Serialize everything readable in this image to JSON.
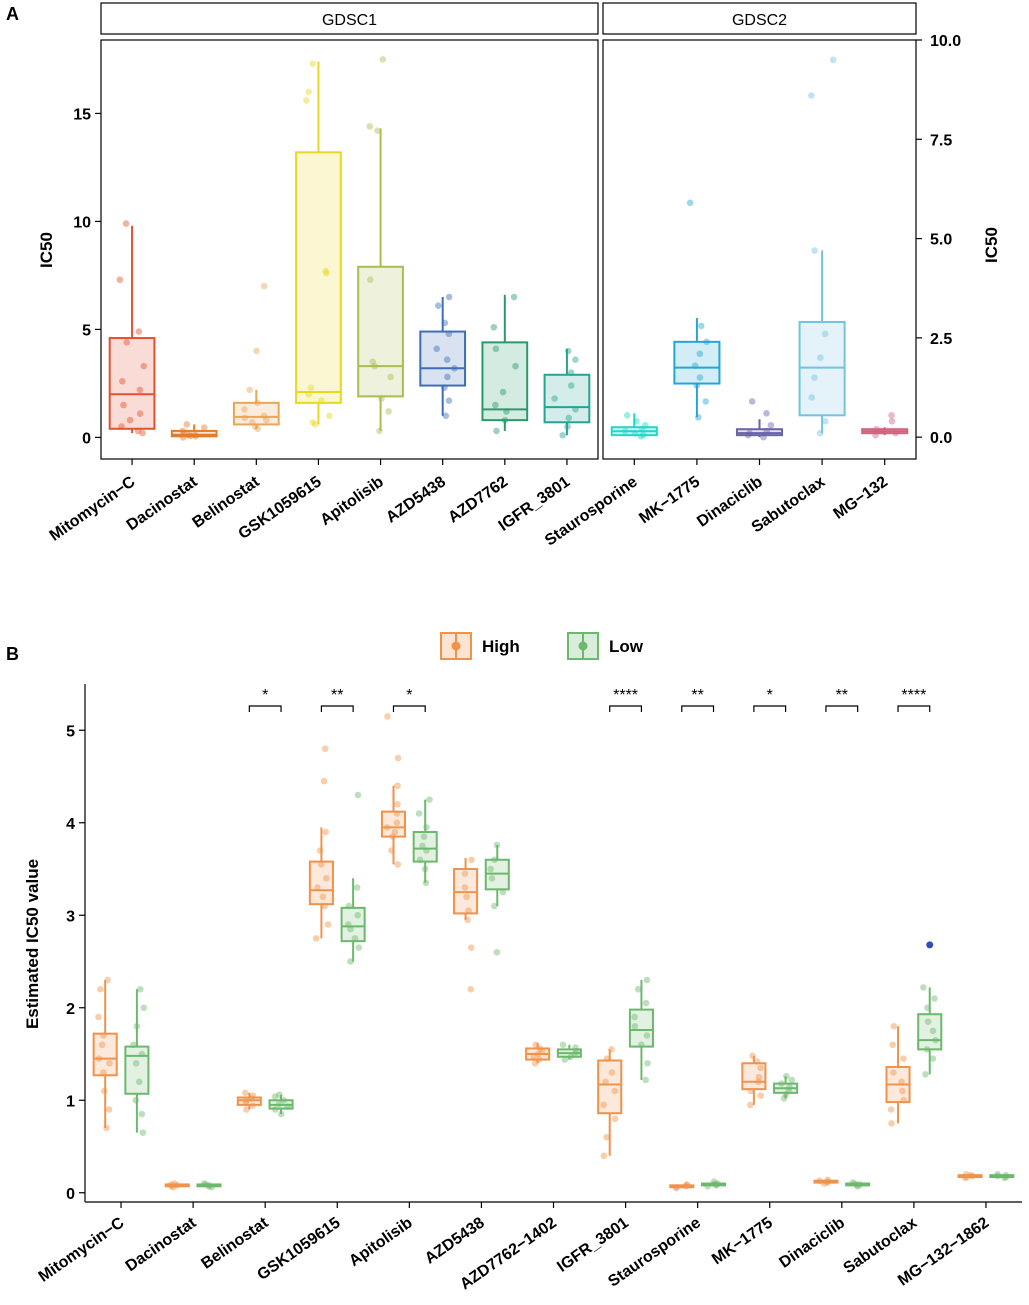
{
  "panel_a": {
    "label": "A",
    "strip_left": "GDSC1",
    "strip_right": "GDSC2",
    "ylabel_left": "IC50",
    "ylabel_right": "IC50"
  },
  "panel_b": {
    "label": "B",
    "ylabel": "Estimated IC50 value",
    "legend_high": "High",
    "legend_low": "Low"
  },
  "chart_data": [
    {
      "id": "A-GDSC1",
      "type": "box",
      "title": "GDSC1",
      "ylabel": "IC50",
      "ylim": [
        -1,
        18.4
      ],
      "yticks": [
        0,
        5,
        10,
        15
      ],
      "grid": false,
      "categories": [
        "Mitomycin−C",
        "Dacinostat",
        "Belinostat",
        "GSK1059615",
        "Apitolisib",
        "AZD5438",
        "AZD7762",
        "IGFR_3801"
      ],
      "colors": [
        "#e2522f",
        "#e07c2e",
        "#e8a754",
        "#e8d81e",
        "#a9bd52",
        "#3d6fb6",
        "#2a9a6b",
        "#27a394"
      ],
      "boxes": [
        {
          "whisker_low": 0.2,
          "q1": 0.4,
          "median": 2.0,
          "q3": 4.6,
          "whisker_high": 9.8,
          "points": [
            0.2,
            0.3,
            0.5,
            0.8,
            1.1,
            1.5,
            2.2,
            2.6,
            3.3,
            4.4,
            4.9,
            7.3,
            9.9
          ]
        },
        {
          "whisker_low": 0.0,
          "q1": 0.05,
          "median": 0.12,
          "q3": 0.3,
          "whisker_high": 0.6,
          "points": [
            0.0,
            0.05,
            0.08,
            0.1,
            0.12,
            0.2,
            0.3,
            0.45,
            0.6
          ]
        },
        {
          "whisker_low": 0.4,
          "q1": 0.6,
          "median": 0.95,
          "q3": 1.6,
          "whisker_high": 2.2,
          "points": [
            0.4,
            0.5,
            0.7,
            0.8,
            0.9,
            1.0,
            1.3,
            1.6,
            2.2,
            4.0,
            7.0
          ]
        },
        {
          "whisker_low": 0.6,
          "q1": 1.6,
          "median": 2.1,
          "q3": 13.2,
          "whisker_high": 17.4,
          "points": [
            0.6,
            0.7,
            1.0,
            1.7,
            2.0,
            2.3,
            7.6,
            7.7,
            15.6,
            16.0,
            17.3
          ]
        },
        {
          "whisker_low": 0.3,
          "q1": 1.9,
          "median": 3.3,
          "q3": 7.9,
          "whisker_high": 14.3,
          "points": [
            0.3,
            1.2,
            1.8,
            2.8,
            3.3,
            3.5,
            7.3,
            14.2,
            14.4,
            17.5
          ]
        },
        {
          "whisker_low": 1.0,
          "q1": 2.4,
          "median": 3.2,
          "q3": 4.9,
          "whisker_high": 6.5,
          "points": [
            1.0,
            1.7,
            2.3,
            2.8,
            3.2,
            3.6,
            4.1,
            4.8,
            5.3,
            6.1,
            6.5
          ]
        },
        {
          "whisker_low": 0.3,
          "q1": 0.8,
          "median": 1.3,
          "q3": 4.4,
          "whisker_high": 6.6,
          "points": [
            0.3,
            0.8,
            1.2,
            1.5,
            2.1,
            3.3,
            4.1,
            5.1,
            6.5
          ]
        },
        {
          "whisker_low": 0.1,
          "q1": 0.7,
          "median": 1.4,
          "q3": 2.9,
          "whisker_high": 4.1,
          "points": [
            0.1,
            0.5,
            0.9,
            1.3,
            1.8,
            2.4,
            3.0,
            3.6,
            4.0
          ]
        }
      ]
    },
    {
      "id": "A-GDSC2",
      "type": "box",
      "title": "GDSC2",
      "ylabel": "IC50",
      "ylim": [
        -0.55,
        10.0
      ],
      "yticks": [
        0.0,
        2.5,
        5.0,
        7.5,
        10.0
      ],
      "ytick_labels": [
        "0.0",
        "2.5",
        "5.0",
        "7.5",
        "10.0"
      ],
      "grid": false,
      "categories": [
        "Staurosporine",
        "MK−1775",
        "Dinaciclib",
        "Sabutoclax",
        "MG−132"
      ],
      "colors": [
        "#1fd8c8",
        "#23a7d1",
        "#6a62aa",
        "#72c3e2",
        "#d6607e"
      ],
      "boxes": [
        {
          "whisker_low": 0.02,
          "q1": 0.05,
          "median": 0.15,
          "q3": 0.25,
          "whisker_high": 0.6,
          "points": [
            0.02,
            0.05,
            0.1,
            0.15,
            0.2,
            0.3,
            0.4,
            0.55
          ]
        },
        {
          "whisker_low": 0.5,
          "q1": 1.35,
          "median": 1.75,
          "q3": 2.4,
          "whisker_high": 3.0,
          "points": [
            0.5,
            0.9,
            1.3,
            1.5,
            1.8,
            2.1,
            2.4,
            2.8,
            5.9
          ]
        },
        {
          "whisker_low": 0.0,
          "q1": 0.05,
          "median": 0.1,
          "q3": 0.2,
          "whisker_high": 0.45,
          "points": [
            0.0,
            0.05,
            0.1,
            0.15,
            0.3,
            0.6,
            0.9
          ]
        },
        {
          "whisker_low": 0.1,
          "q1": 0.55,
          "median": 1.75,
          "q3": 2.9,
          "whisker_high": 4.7,
          "points": [
            0.1,
            0.4,
            1.0,
            1.5,
            2.0,
            2.6,
            4.7,
            8.6,
            9.5
          ]
        },
        {
          "whisker_low": 0.05,
          "q1": 0.1,
          "median": 0.15,
          "q3": 0.2,
          "whisker_high": 0.25,
          "points": [
            0.05,
            0.1,
            0.15,
            0.2,
            0.4,
            0.55
          ]
        }
      ]
    },
    {
      "id": "B",
      "type": "box",
      "title": "",
      "xlabel": "",
      "ylabel": "Estimated IC50 value",
      "ylim": [
        -0.1,
        5.5
      ],
      "yticks": [
        0,
        1,
        2,
        3,
        4,
        5
      ],
      "grid": false,
      "legend_position": "top-center",
      "categories": [
        "Mitomycin−C",
        "Dacinostat",
        "Belinostat",
        "GSK1059615",
        "Apitolisib",
        "AZD5438",
        "AZD7762−1402",
        "IGFR_3801",
        "Staurosporine",
        "MK−1775",
        "Dinaciclib",
        "Sabutoclax",
        "MG−132−1862"
      ],
      "series": [
        {
          "name": "High",
          "color": "#f0924a",
          "boxes": [
            {
              "whisker_low": 0.7,
              "q1": 1.27,
              "median": 1.45,
              "q3": 1.72,
              "whisker_high": 2.3,
              "points": [
                0.7,
                0.9,
                1.1,
                1.3,
                1.4,
                1.45,
                1.6,
                1.7,
                1.9,
                2.2,
                2.3
              ]
            },
            {
              "whisker_low": 0.06,
              "q1": 0.07,
              "median": 0.08,
              "q3": 0.09,
              "whisker_high": 0.1,
              "points": [
                0.06,
                0.07,
                0.08,
                0.09,
                0.1
              ]
            },
            {
              "whisker_low": 0.9,
              "q1": 0.95,
              "median": 1.0,
              "q3": 1.03,
              "whisker_high": 1.08,
              "points": [
                0.9,
                0.94,
                0.97,
                1.0,
                1.02,
                1.05,
                1.08
              ]
            },
            {
              "whisker_low": 2.75,
              "q1": 3.12,
              "median": 3.27,
              "q3": 3.58,
              "whisker_high": 3.95,
              "points": [
                2.75,
                2.9,
                3.1,
                3.2,
                3.3,
                3.4,
                3.55,
                3.7,
                3.9,
                4.45,
                4.8
              ]
            },
            {
              "whisker_low": 3.55,
              "q1": 3.85,
              "median": 3.95,
              "q3": 4.12,
              "whisker_high": 4.4,
              "points": [
                3.55,
                3.7,
                3.85,
                3.9,
                3.95,
                4.0,
                4.1,
                4.2,
                4.4,
                4.7,
                5.15
              ]
            },
            {
              "whisker_low": 2.95,
              "q1": 3.02,
              "median": 3.25,
              "q3": 3.5,
              "whisker_high": 3.62,
              "points": [
                2.2,
                2.65,
                2.95,
                3.05,
                3.2,
                3.3,
                3.45,
                3.6
              ]
            },
            {
              "whisker_low": 1.4,
              "q1": 1.44,
              "median": 1.5,
              "q3": 1.56,
              "whisker_high": 1.62,
              "points": [
                1.4,
                1.44,
                1.48,
                1.5,
                1.53,
                1.56,
                1.6
              ]
            },
            {
              "whisker_low": 0.4,
              "q1": 0.86,
              "median": 1.17,
              "q3": 1.43,
              "whisker_high": 1.55,
              "points": [
                0.4,
                0.6,
                0.8,
                0.95,
                1.1,
                1.2,
                1.3,
                1.45,
                1.55
              ]
            },
            {
              "whisker_low": 0.05,
              "q1": 0.06,
              "median": 0.07,
              "q3": 0.08,
              "whisker_high": 0.09,
              "points": [
                0.05,
                0.06,
                0.07,
                0.08,
                0.09
              ]
            },
            {
              "whisker_low": 0.95,
              "q1": 1.12,
              "median": 1.2,
              "q3": 1.4,
              "whisker_high": 1.48,
              "points": [
                0.95,
                1.05,
                1.1,
                1.2,
                1.25,
                1.35,
                1.42,
                1.48
              ]
            },
            {
              "whisker_low": 0.1,
              "q1": 0.11,
              "median": 0.12,
              "q3": 0.13,
              "whisker_high": 0.14,
              "points": [
                0.1,
                0.11,
                0.12,
                0.13,
                0.14
              ]
            },
            {
              "whisker_low": 0.75,
              "q1": 0.98,
              "median": 1.17,
              "q3": 1.36,
              "whisker_high": 1.8,
              "points": [
                0.75,
                0.9,
                1.0,
                1.1,
                1.2,
                1.3,
                1.45,
                1.6,
                1.8
              ]
            },
            {
              "whisker_low": 0.16,
              "q1": 0.17,
              "median": 0.18,
              "q3": 0.19,
              "whisker_high": 0.2,
              "points": [
                0.16,
                0.17,
                0.18,
                0.19,
                0.2
              ]
            }
          ]
        },
        {
          "name": "Low",
          "color": "#6cb86c",
          "boxes": [
            {
              "whisker_low": 0.65,
              "q1": 1.07,
              "median": 1.48,
              "q3": 1.58,
              "whisker_high": 2.2,
              "points": [
                0.65,
                0.85,
                1.0,
                1.2,
                1.4,
                1.5,
                1.6,
                1.8,
                2.0,
                2.2
              ]
            },
            {
              "whisker_low": 0.06,
              "q1": 0.07,
              "median": 0.08,
              "q3": 0.09,
              "whisker_high": 0.1,
              "points": [
                0.06,
                0.07,
                0.08,
                0.09,
                0.1
              ]
            },
            {
              "whisker_low": 0.85,
              "q1": 0.91,
              "median": 0.95,
              "q3": 1.0,
              "whisker_high": 1.06,
              "points": [
                0.85,
                0.9,
                0.93,
                0.96,
                1.0,
                1.04,
                1.06
              ]
            },
            {
              "whisker_low": 2.5,
              "q1": 2.72,
              "median": 2.88,
              "q3": 3.08,
              "whisker_high": 3.4,
              "points": [
                2.5,
                2.65,
                2.75,
                2.85,
                2.9,
                3.0,
                3.1,
                3.3,
                4.3
              ]
            },
            {
              "whisker_low": 3.35,
              "q1": 3.58,
              "median": 3.72,
              "q3": 3.9,
              "whisker_high": 4.25,
              "points": [
                3.35,
                3.5,
                3.6,
                3.7,
                3.75,
                3.85,
                3.95,
                4.1,
                4.25
              ]
            },
            {
              "whisker_low": 3.1,
              "q1": 3.28,
              "median": 3.45,
              "q3": 3.6,
              "whisker_high": 3.76,
              "points": [
                2.6,
                3.1,
                3.25,
                3.4,
                3.5,
                3.6,
                3.76
              ]
            },
            {
              "whisker_low": 1.44,
              "q1": 1.47,
              "median": 1.51,
              "q3": 1.55,
              "whisker_high": 1.6,
              "points": [
                1.44,
                1.47,
                1.5,
                1.53,
                1.57,
                1.6
              ]
            },
            {
              "whisker_low": 1.22,
              "q1": 1.58,
              "median": 1.76,
              "q3": 1.98,
              "whisker_high": 2.3,
              "points": [
                1.22,
                1.4,
                1.6,
                1.7,
                1.8,
                1.9,
                2.05,
                2.2,
                2.3
              ]
            },
            {
              "whisker_low": 0.07,
              "q1": 0.08,
              "median": 0.09,
              "q3": 0.1,
              "whisker_high": 0.12,
              "points": [
                0.07,
                0.08,
                0.09,
                0.1,
                0.12
              ]
            },
            {
              "whisker_low": 1.02,
              "q1": 1.08,
              "median": 1.13,
              "q3": 1.18,
              "whisker_high": 1.26,
              "points": [
                1.02,
                1.06,
                1.1,
                1.14,
                1.18,
                1.22,
                1.26
              ]
            },
            {
              "whisker_low": 0.07,
              "q1": 0.08,
              "median": 0.09,
              "q3": 0.1,
              "whisker_high": 0.11,
              "points": [
                0.07,
                0.08,
                0.09,
                0.1,
                0.11
              ]
            },
            {
              "whisker_low": 1.28,
              "q1": 1.55,
              "median": 1.65,
              "q3": 1.93,
              "whisker_high": 2.22,
              "points": [
                1.28,
                1.45,
                1.55,
                1.65,
                1.75,
                1.85,
                2.0,
                2.1,
                2.22
              ],
              "outliers": [
                2.68
              ]
            },
            {
              "whisker_low": 0.16,
              "q1": 0.17,
              "median": 0.18,
              "q3": 0.19,
              "whisker_high": 0.2,
              "points": [
                0.16,
                0.17,
                0.18,
                0.19,
                0.2
              ]
            }
          ]
        }
      ],
      "significance": [
        {
          "category": "Belinostat",
          "label": "*"
        },
        {
          "category": "GSK1059615",
          "label": "**"
        },
        {
          "category": "Apitolisib",
          "label": "*"
        },
        {
          "category": "IGFR_3801",
          "label": "****"
        },
        {
          "category": "Staurosporine",
          "label": "**"
        },
        {
          "category": "MK−1775",
          "label": "*"
        },
        {
          "category": "Dinaciclib",
          "label": "**"
        },
        {
          "category": "Sabutoclax",
          "label": "****"
        }
      ]
    }
  ]
}
